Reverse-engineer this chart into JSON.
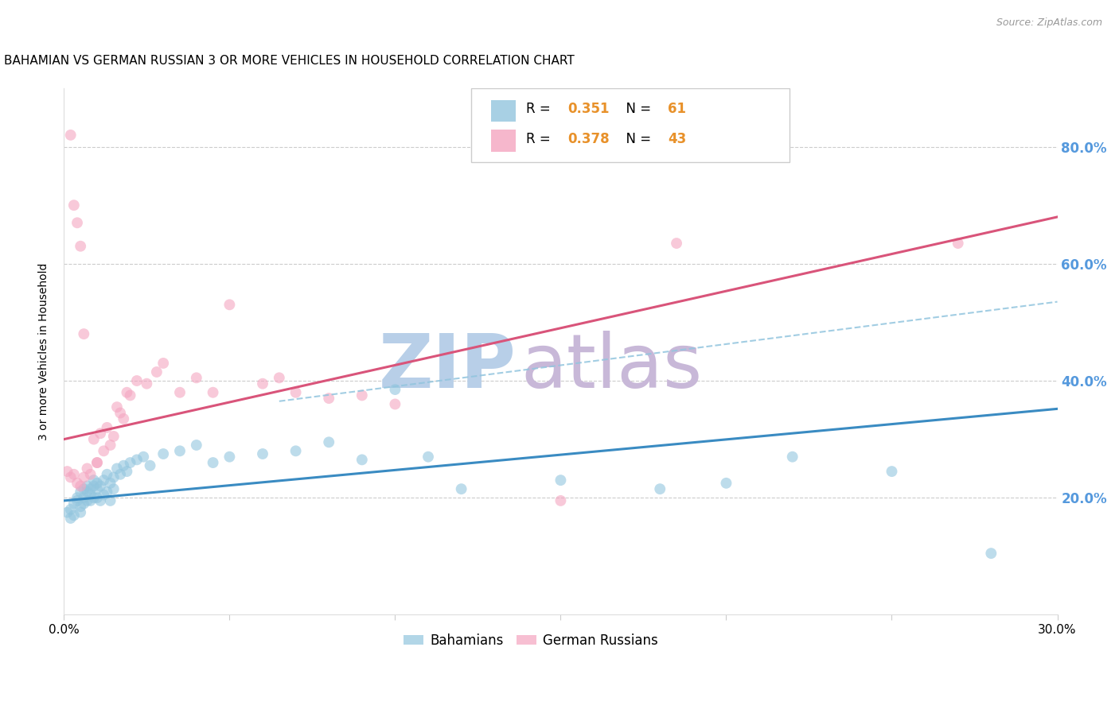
{
  "title": "BAHAMIAN VS GERMAN RUSSIAN 3 OR MORE VEHICLES IN HOUSEHOLD CORRELATION CHART",
  "source": "Source: ZipAtlas.com",
  "ylabel": "3 or more Vehicles in Household",
  "xlim": [
    0.0,
    0.3
  ],
  "ylim": [
    0.0,
    0.9
  ],
  "yticks": [
    0.2,
    0.4,
    0.6,
    0.8
  ],
  "ytick_labels": [
    "20.0%",
    "40.0%",
    "60.0%",
    "80.0%"
  ],
  "xticks": [
    0.0,
    0.05,
    0.1,
    0.15,
    0.2,
    0.25,
    0.3
  ],
  "legend_labels": [
    "Bahamians",
    "German Russians"
  ],
  "bahamian_color": "#92c5de",
  "german_russian_color": "#f4a5c0",
  "blue_line_color": "#3a8bc2",
  "pink_line_color": "#d9547a",
  "blue_dashed_color": "#92c5de",
  "watermark_zip": "ZIP",
  "watermark_atlas": "atlas",
  "watermark_zip_color": "#b8cfe8",
  "watermark_atlas_color": "#c8b8d8",
  "title_fontsize": 11,
  "source_fontsize": 9,
  "axis_label_fontsize": 10,
  "tick_fontsize": 11,
  "right_tick_color": "#5599dd",
  "blue_line": {
    "x0": 0.0,
    "x1": 0.3,
    "y0": 0.195,
    "y1": 0.352
  },
  "pink_line": {
    "x0": 0.0,
    "x1": 0.3,
    "y0": 0.3,
    "y1": 0.68
  },
  "blue_dashed_line": {
    "x0": 0.065,
    "x1": 0.3,
    "y0": 0.365,
    "y1": 0.535
  },
  "bahamian_scatter_x": [
    0.001,
    0.002,
    0.002,
    0.003,
    0.003,
    0.004,
    0.004,
    0.005,
    0.005,
    0.005,
    0.006,
    0.006,
    0.006,
    0.007,
    0.007,
    0.007,
    0.008,
    0.008,
    0.008,
    0.009,
    0.009,
    0.009,
    0.01,
    0.01,
    0.01,
    0.011,
    0.011,
    0.012,
    0.012,
    0.013,
    0.013,
    0.014,
    0.014,
    0.015,
    0.015,
    0.016,
    0.017,
    0.018,
    0.019,
    0.02,
    0.022,
    0.024,
    0.026,
    0.03,
    0.035,
    0.04,
    0.045,
    0.05,
    0.06,
    0.07,
    0.08,
    0.09,
    0.1,
    0.11,
    0.12,
    0.15,
    0.18,
    0.2,
    0.22,
    0.25,
    0.28
  ],
  "bahamian_scatter_y": [
    0.175,
    0.18,
    0.165,
    0.19,
    0.17,
    0.195,
    0.2,
    0.185,
    0.175,
    0.21,
    0.2,
    0.215,
    0.19,
    0.195,
    0.21,
    0.22,
    0.205,
    0.215,
    0.195,
    0.22,
    0.2,
    0.23,
    0.215,
    0.225,
    0.2,
    0.22,
    0.195,
    0.23,
    0.205,
    0.24,
    0.21,
    0.225,
    0.195,
    0.235,
    0.215,
    0.25,
    0.24,
    0.255,
    0.245,
    0.26,
    0.265,
    0.27,
    0.255,
    0.275,
    0.28,
    0.29,
    0.26,
    0.27,
    0.275,
    0.28,
    0.295,
    0.265,
    0.385,
    0.27,
    0.215,
    0.23,
    0.215,
    0.225,
    0.27,
    0.245,
    0.105
  ],
  "german_russian_scatter_x": [
    0.001,
    0.002,
    0.003,
    0.004,
    0.005,
    0.006,
    0.007,
    0.008,
    0.009,
    0.01,
    0.011,
    0.012,
    0.013,
    0.014,
    0.015,
    0.016,
    0.017,
    0.018,
    0.019,
    0.02,
    0.022,
    0.025,
    0.028,
    0.03,
    0.035,
    0.04,
    0.045,
    0.05,
    0.06,
    0.065,
    0.07,
    0.08,
    0.09,
    0.1,
    0.15,
    0.185,
    0.27,
    0.002,
    0.003,
    0.004,
    0.005,
    0.006,
    0.01
  ],
  "german_russian_scatter_y": [
    0.245,
    0.235,
    0.24,
    0.225,
    0.22,
    0.235,
    0.25,
    0.24,
    0.3,
    0.26,
    0.31,
    0.28,
    0.32,
    0.29,
    0.305,
    0.355,
    0.345,
    0.335,
    0.38,
    0.375,
    0.4,
    0.395,
    0.415,
    0.43,
    0.38,
    0.405,
    0.38,
    0.53,
    0.395,
    0.405,
    0.38,
    0.37,
    0.375,
    0.36,
    0.195,
    0.635,
    0.635,
    0.82,
    0.7,
    0.67,
    0.63,
    0.48,
    0.26
  ]
}
